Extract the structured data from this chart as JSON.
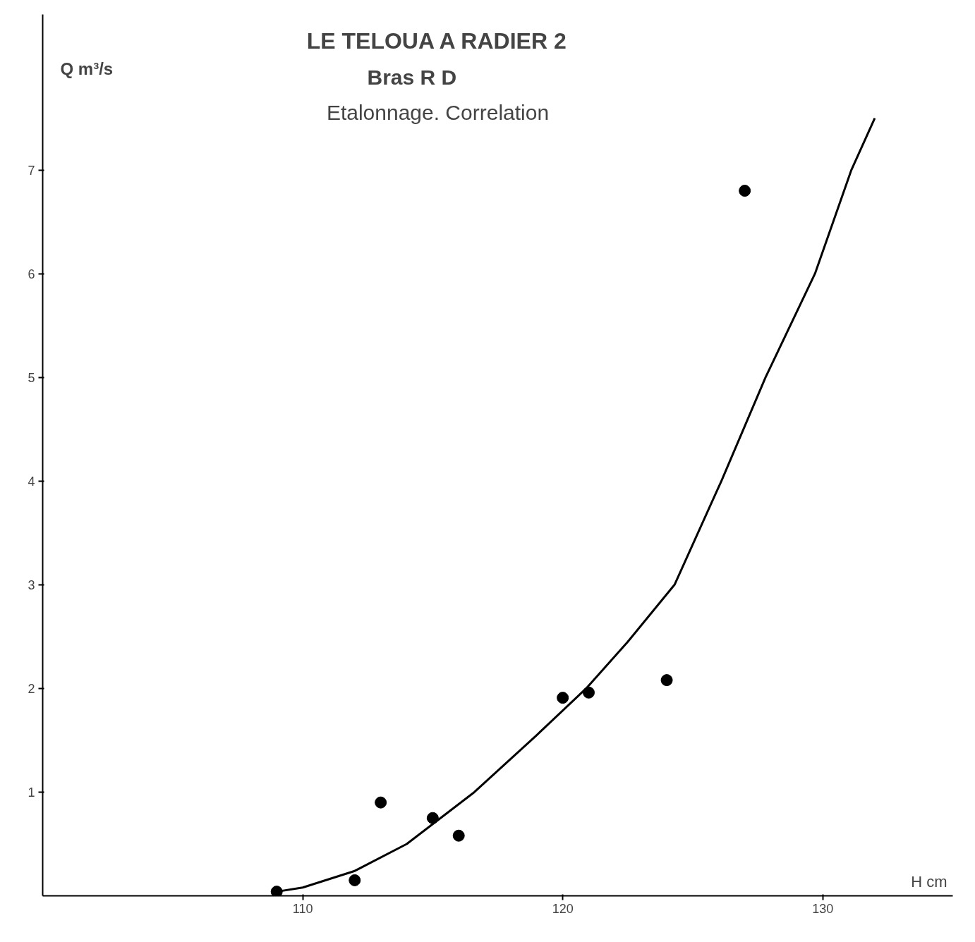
{
  "chart_data": {
    "type": "scatter",
    "title": "LE TELOUA A RADIER 2",
    "subtitle": "Bras     R D",
    "annotations": [
      "Etalonnage. Correlation"
    ],
    "xlabel": "H cm",
    "ylabel": "Q m³/s",
    "xlim": [
      100,
      135
    ],
    "ylim": [
      0,
      8.5
    ],
    "xticks": [
      110,
      120,
      130
    ],
    "yticks": [
      1,
      2,
      3,
      4,
      5,
      6,
      7
    ],
    "grid": false,
    "marker": "circle",
    "series": [
      {
        "color": "#000000",
        "x": [
          109,
          112,
          113,
          115,
          116,
          120,
          121,
          124,
          127
        ],
        "values": [
          0.04,
          0.15,
          0.9,
          0.75,
          0.58,
          1.91,
          1.96,
          2.08,
          6.8
        ]
      },
      {
        "type": "line",
        "marker": "none",
        "color": "#000000",
        "line_style": "solid",
        "x": [
          109,
          110,
          112,
          114,
          116.6,
          119,
          120.9,
          122.5,
          124.3,
          126.1,
          127.8,
          129.7,
          131.1,
          132
        ],
        "values": [
          0.04,
          0.08,
          0.24,
          0.5,
          1,
          1.55,
          2,
          2.45,
          3,
          4,
          5,
          6,
          7,
          7.5
        ]
      }
    ]
  }
}
